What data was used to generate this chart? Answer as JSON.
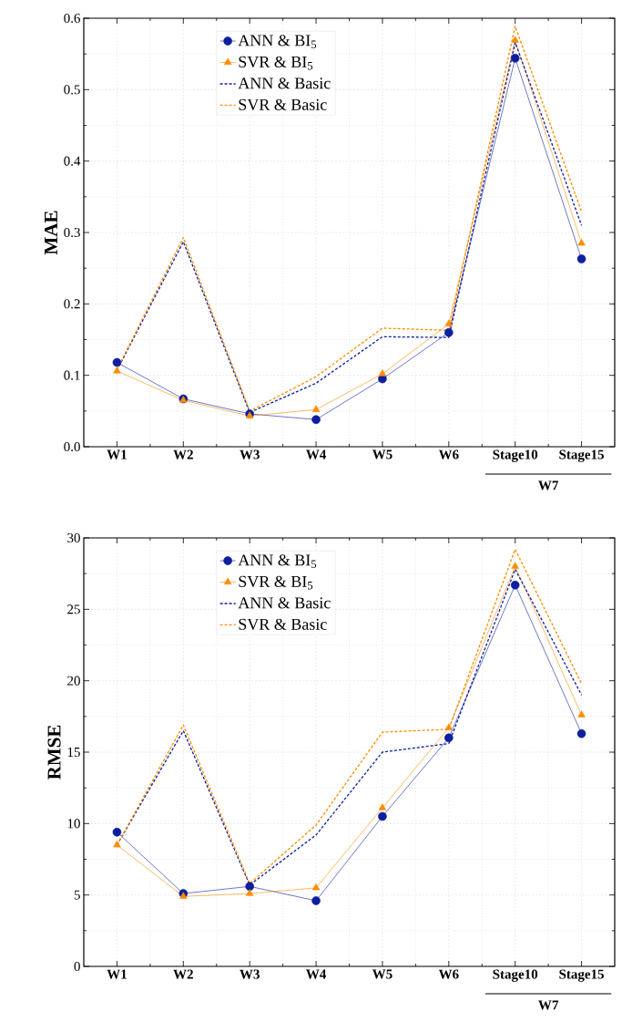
{
  "chart_data": [
    {
      "type": "line",
      "ylabel": "MAE",
      "categories": [
        "W1",
        "W2",
        "W3",
        "W4",
        "W5",
        "W6",
        "Stage10",
        "Stage15"
      ],
      "annotations": [
        "W7"
      ],
      "ylim": [
        0,
        0.6
      ],
      "yticks": [
        {
          "value": 0,
          "label": "0.0"
        },
        0.1,
        0.2,
        0.3,
        0.4,
        0.5,
        0.6
      ],
      "grid": true,
      "legend": "top",
      "series": [
        {
          "name": "ANN & BI$_{5}$",
          "color": "#0d1f9e",
          "marker": "circle",
          "line_style": "solid",
          "values": [
            0.118,
            0.067,
            0.046,
            0.038,
            0.095,
            0.16,
            0.544,
            0.263
          ]
        },
        {
          "name": "SVR & BI$_{5}$",
          "color": "#ff8c00",
          "marker": "triangle",
          "line_style": "solid",
          "values": [
            0.106,
            0.065,
            0.043,
            0.052,
            0.102,
            0.172,
            0.569,
            0.285
          ]
        },
        {
          "name": "ANN & Basic",
          "color": "#0d1f9e",
          "marker": "none",
          "line_style": "dashed",
          "values": [
            0.107,
            0.287,
            0.048,
            0.089,
            0.154,
            0.153,
            0.566,
            0.31
          ]
        },
        {
          "name": "SVR & Basic",
          "color": "#ff8c00",
          "marker": "none",
          "line_style": "dashed",
          "values": [
            0.108,
            0.293,
            0.05,
            0.098,
            0.166,
            0.163,
            0.589,
            0.329
          ]
        }
      ]
    },
    {
      "type": "line",
      "ylabel": "RMSE",
      "categories": [
        "W1",
        "W2",
        "W3",
        "W4",
        "W5",
        "W6",
        "Stage10",
        "Stage15"
      ],
      "annotations": [
        "W7"
      ],
      "ylim": [
        0,
        30
      ],
      "yticks": [
        0,
        5,
        10,
        15,
        20,
        25,
        30
      ],
      "grid": true,
      "legend": "top",
      "series": [
        {
          "name": "ANN & BI$_{5}$",
          "color": "#0d1f9e",
          "marker": "circle",
          "line_style": "solid",
          "values": [
            9.4,
            5.1,
            5.6,
            4.6,
            10.5,
            16.0,
            26.7,
            16.3
          ]
        },
        {
          "name": "SVR & BI$_{5}$",
          "color": "#ff8c00",
          "marker": "triangle",
          "line_style": "solid",
          "values": [
            8.5,
            4.9,
            5.1,
            5.5,
            11.1,
            16.7,
            28.0,
            17.6
          ]
        },
        {
          "name": "ANN & Basic",
          "color": "#0d1f9e",
          "marker": "none",
          "line_style": "dashed",
          "values": [
            8.5,
            16.5,
            5.7,
            9.2,
            15.0,
            15.6,
            27.8,
            19.0
          ]
        },
        {
          "name": "SVR & Basic",
          "color": "#ff8c00",
          "marker": "none",
          "line_style": "dashed",
          "values": [
            8.5,
            16.9,
            5.8,
            9.9,
            16.4,
            16.6,
            29.2,
            19.8
          ]
        }
      ]
    }
  ]
}
